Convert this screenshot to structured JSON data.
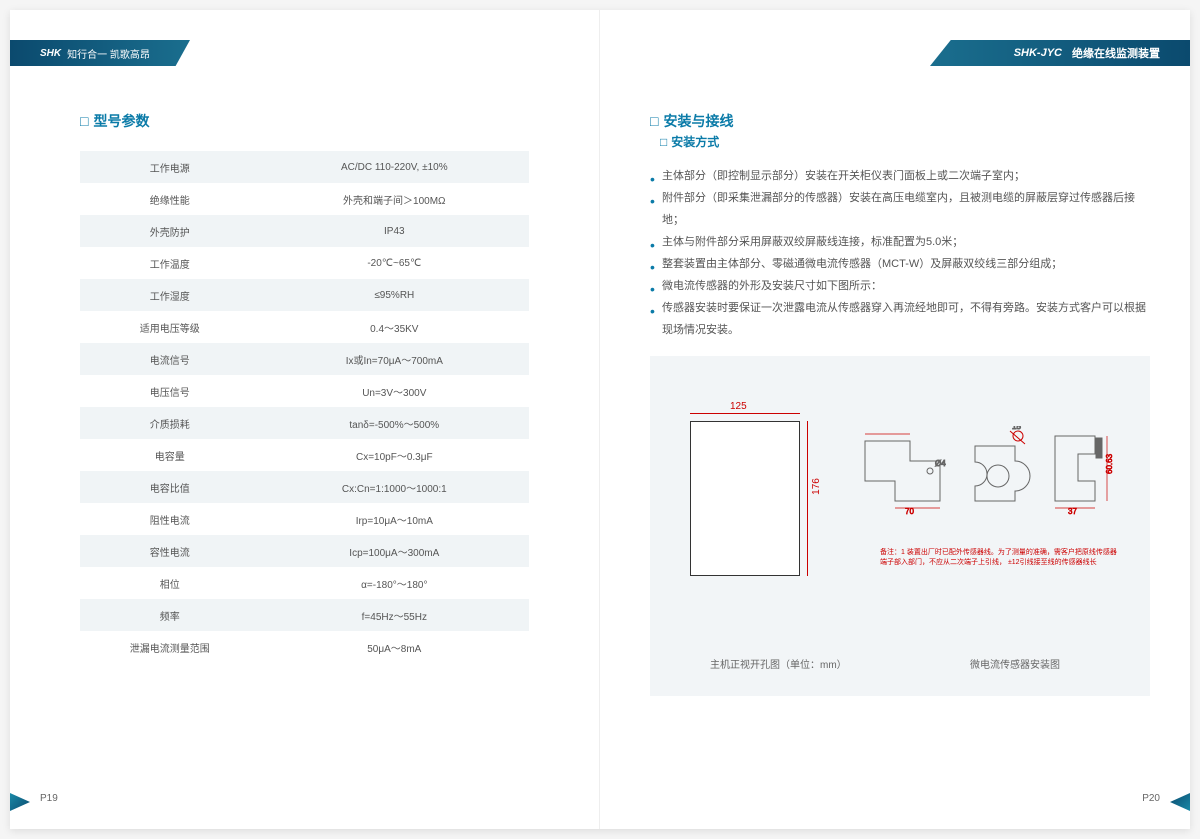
{
  "header": {
    "left_brand": "SHK",
    "left_tagline": "知行合一 凯歌高昂",
    "right_model": "SHK-JYC",
    "right_title": "绝缘在线监测装置"
  },
  "left_page": {
    "section_title": "型号参数",
    "specs": [
      {
        "label": "工作电源",
        "value": "AC/DC 110-220V, ±10%"
      },
      {
        "label": "绝缘性能",
        "value": "外壳和端子间＞100MΩ"
      },
      {
        "label": "外壳防护",
        "value": "IP43"
      },
      {
        "label": "工作温度",
        "value": "-20℃~65℃"
      },
      {
        "label": "工作湿度",
        "value": "≤95%RH"
      },
      {
        "label": "适用电压等级",
        "value": "0.4～35KV"
      },
      {
        "label": "电流信号",
        "value": "Ix或In=70μA～700mA"
      },
      {
        "label": "电压信号",
        "value": "Un=3V～300V"
      },
      {
        "label": "介质损耗",
        "value": "tanδ=-500%～500%"
      },
      {
        "label": "电容量",
        "value": "Cx=10pF～0.3μF"
      },
      {
        "label": "电容比值",
        "value": "Cx:Cn=1:1000～1000:1"
      },
      {
        "label": "阻性电流",
        "value": "Irp=10μA～10mA"
      },
      {
        "label": "容性电流",
        "value": "Icp=100μA～300mA"
      },
      {
        "label": "相位",
        "value": "α=-180°～180°"
      },
      {
        "label": "频率",
        "value": "f=45Hz～55Hz"
      },
      {
        "label": "泄漏电流测量范围",
        "value": "50μA～8mA"
      }
    ],
    "page_num": "P19"
  },
  "right_page": {
    "section_title": "安装与接线",
    "sub_title": "安装方式",
    "bullets": [
      "主体部分（即控制显示部分）安装在开关柜仪表门面板上或二次端子室内；",
      "附件部分（即采集泄漏部分的传感器）安装在高压电缆室内，且被测电缆的屏蔽层穿过传感器后接地；",
      "主体与附件部分采用屏蔽双绞屏蔽线连接，标准配置为5.0米；",
      "整套装置由主体部分、零磁通微电流传感器（MCT-W）及屏蔽双绞线三部分组成；",
      "微电流传感器的外形及安装尺寸如下图所示：",
      "传感器安装时要保证一次泄露电流从传感器穿入再流经地即可，不得有旁路。安装方式客户可以根据现场情况安装。"
    ],
    "diagram": {
      "host_width": "125",
      "host_height": "176",
      "sensor_dims": {
        "w1": "70",
        "h1": "37",
        "d": "Ø4",
        "gap": "15",
        "w2": "37",
        "h2": "60.63"
      },
      "note": "备注：1 装置出厂时已配外传感器线。为了测量的准确，需客户把原线传感器端子部入部门，不应从二次端子上引线，\n    ±12引线接至线的传感器线长",
      "caption_left": "主机正视开孔图（单位：mm）",
      "caption_right": "微电流传感器安装图"
    },
    "page_num": "P20"
  },
  "colors": {
    "brand_teal": "#0b7ba8",
    "header_dark": "#0b4a6e",
    "header_light": "#1a6e8e",
    "table_stripe": "#f0f4f6",
    "diagram_bg": "#f2f5f7",
    "dim_red": "#c00",
    "text": "#555"
  }
}
